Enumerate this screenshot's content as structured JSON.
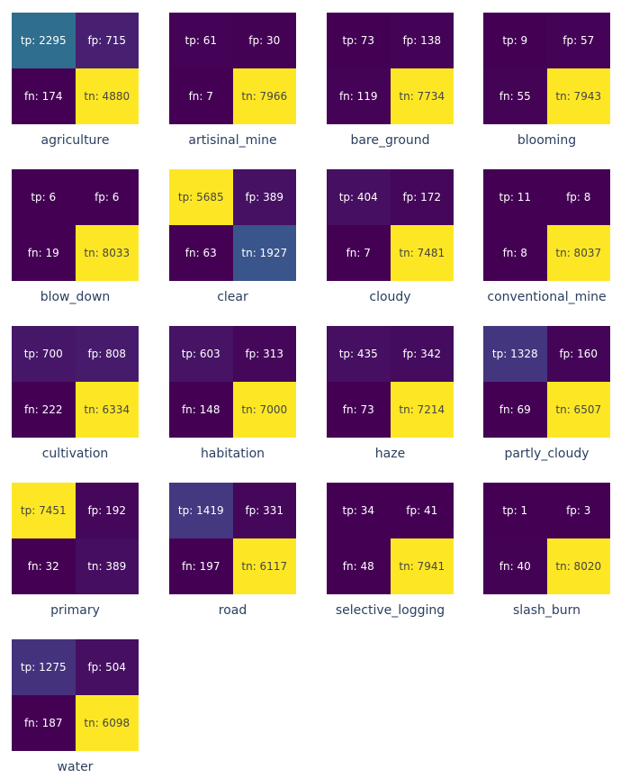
{
  "chart_data": {
    "type": "heatmap",
    "colorscale": "viridis",
    "cells": [
      "tp",
      "fp",
      "fn",
      "tn"
    ],
    "panels": [
      {
        "label": "agriculture",
        "tp": 2295,
        "fp": 715,
        "fn": 174,
        "tn": 4880
      },
      {
        "label": "artisinal_mine",
        "tp": 61,
        "fp": 30,
        "fn": 7,
        "tn": 7966
      },
      {
        "label": "bare_ground",
        "tp": 73,
        "fp": 138,
        "fn": 119,
        "tn": 7734
      },
      {
        "label": "blooming",
        "tp": 9,
        "fp": 57,
        "fn": 55,
        "tn": 7943
      },
      {
        "label": "blow_down",
        "tp": 6,
        "fp": 6,
        "fn": 19,
        "tn": 8033
      },
      {
        "label": "clear",
        "tp": 5685,
        "fp": 389,
        "fn": 63,
        "tn": 1927
      },
      {
        "label": "cloudy",
        "tp": 404,
        "fp": 172,
        "fn": 7,
        "tn": 7481
      },
      {
        "label": "conventional_mine",
        "tp": 11,
        "fp": 8,
        "fn": 8,
        "tn": 8037
      },
      {
        "label": "cultivation",
        "tp": 700,
        "fp": 808,
        "fn": 222,
        "tn": 6334
      },
      {
        "label": "habitation",
        "tp": 603,
        "fp": 313,
        "fn": 148,
        "tn": 7000
      },
      {
        "label": "haze",
        "tp": 435,
        "fp": 342,
        "fn": 73,
        "tn": 7214
      },
      {
        "label": "partly_cloudy",
        "tp": 1328,
        "fp": 160,
        "fn": 69,
        "tn": 6507
      },
      {
        "label": "primary",
        "tp": 7451,
        "fp": 192,
        "fn": 32,
        "tn": 389
      },
      {
        "label": "road",
        "tp": 1419,
        "fp": 331,
        "fn": 197,
        "tn": 6117
      },
      {
        "label": "selective_logging",
        "tp": 34,
        "fp": 41,
        "fn": 48,
        "tn": 7941
      },
      {
        "label": "slash_burn",
        "tp": 1,
        "fp": 3,
        "fn": 40,
        "tn": 8020
      },
      {
        "label": "water",
        "tp": 1275,
        "fp": 504,
        "fn": 187,
        "tn": 6098
      }
    ]
  }
}
